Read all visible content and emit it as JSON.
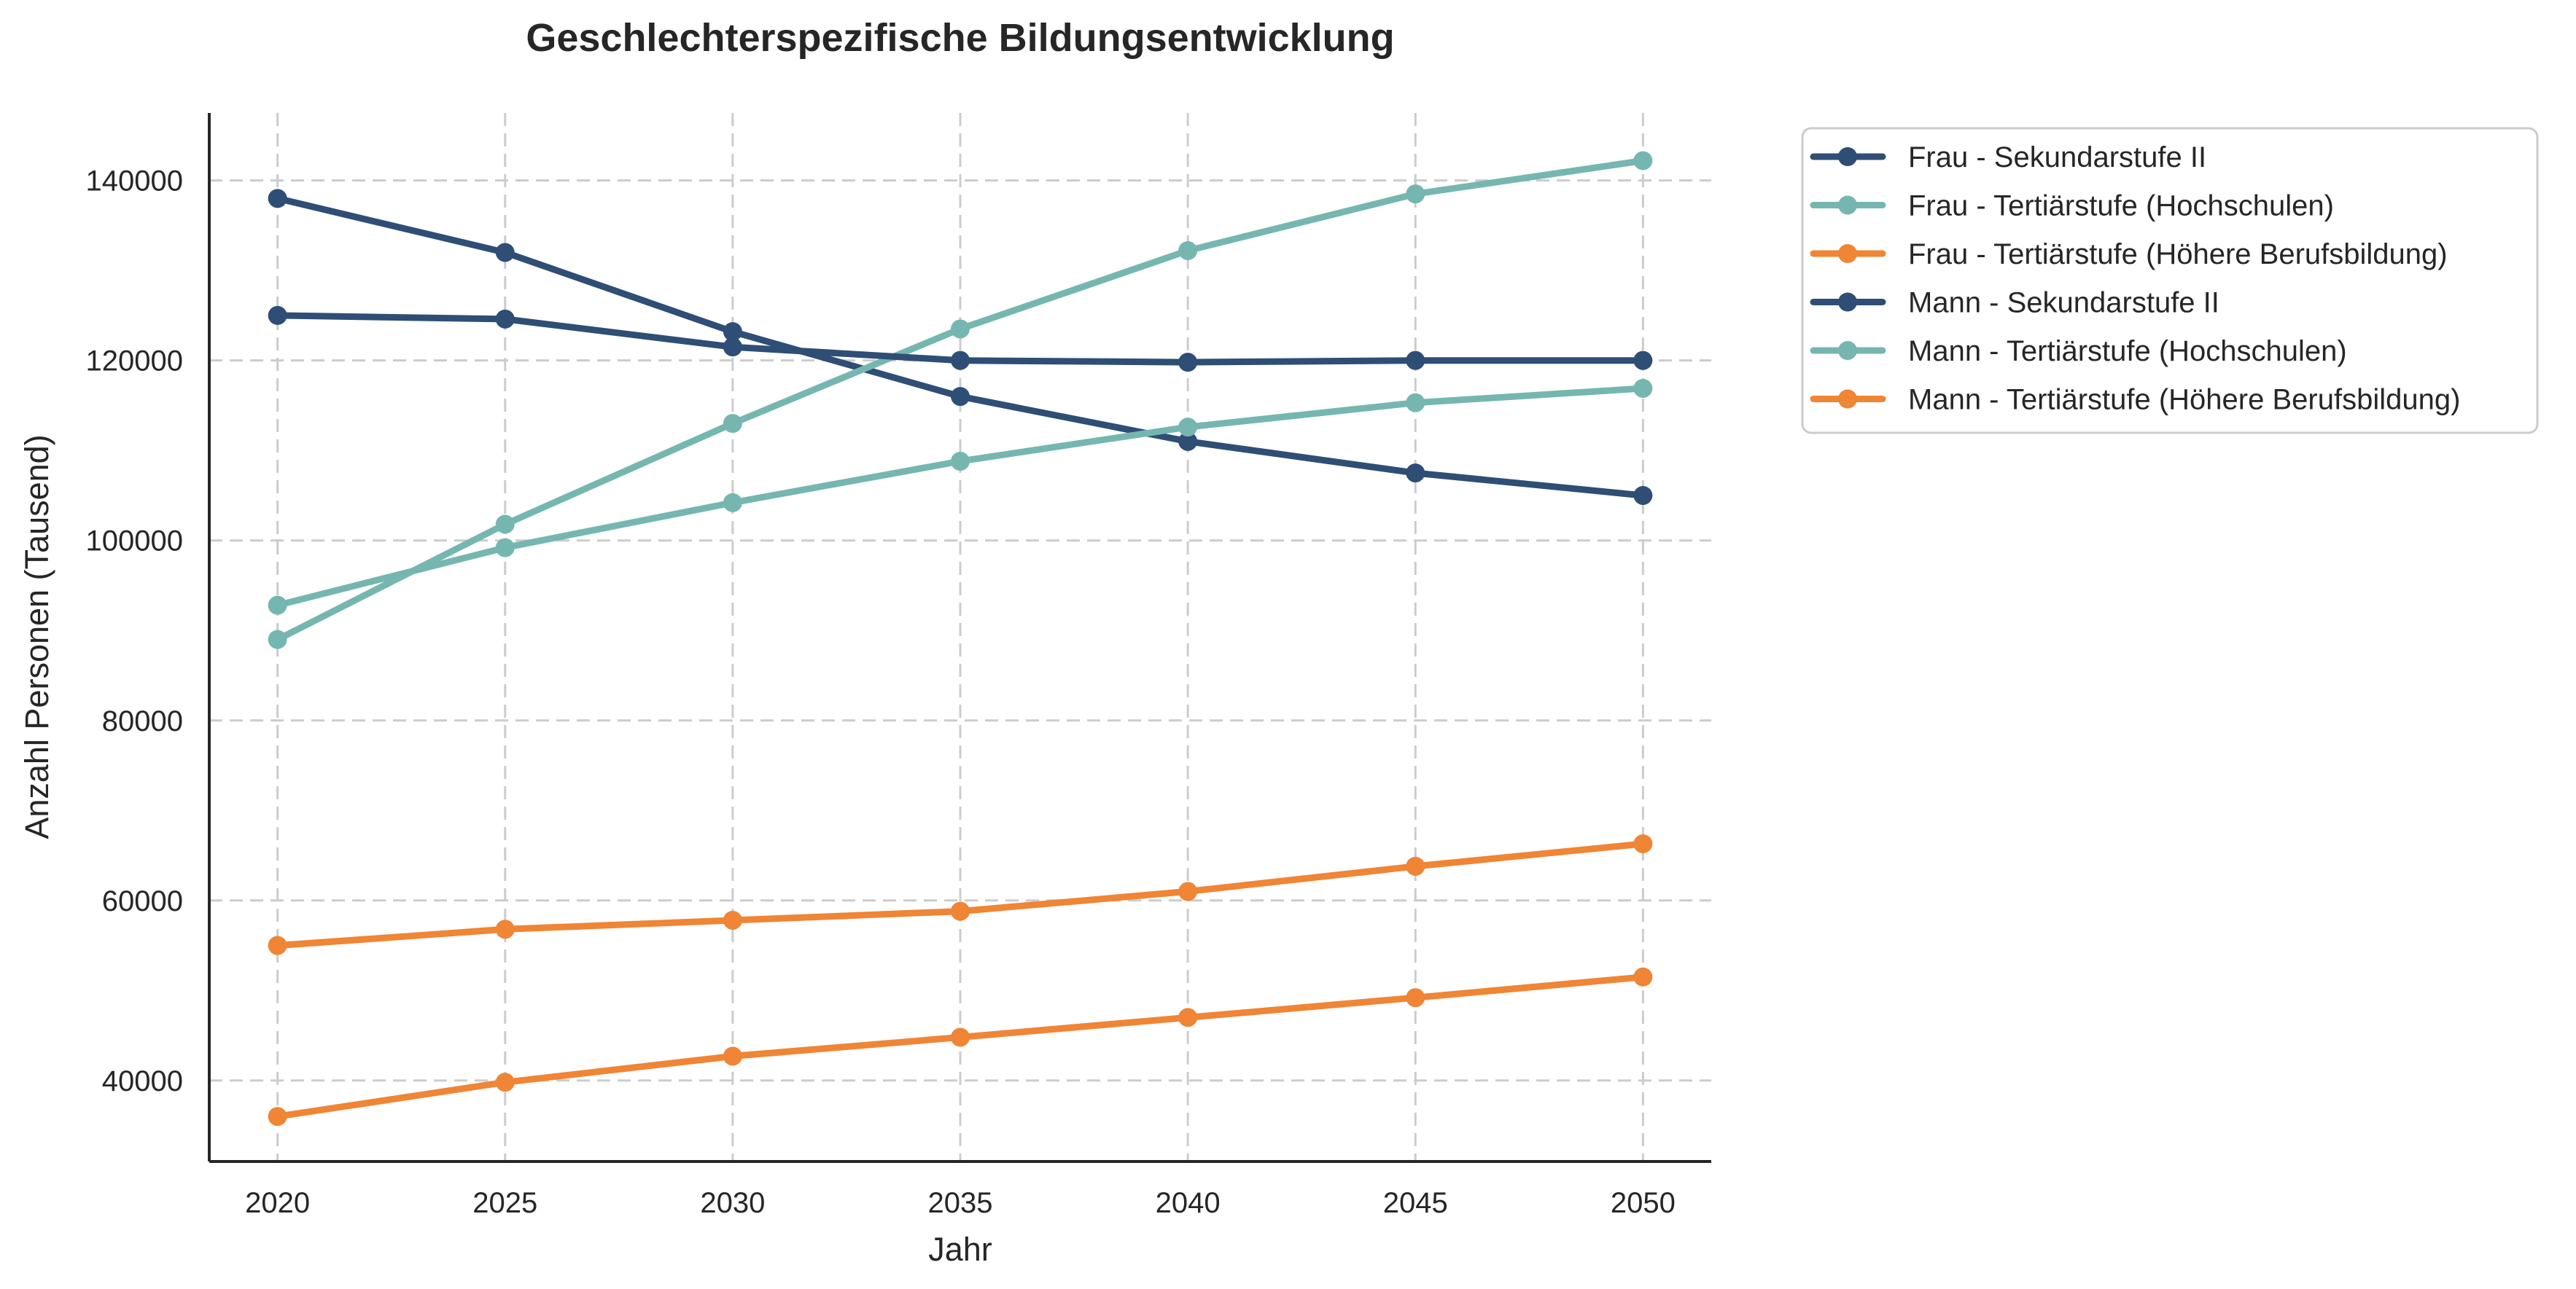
{
  "chart_data": {
    "type": "line",
    "title": "Geschlechterspezifische Bildungsentwicklung",
    "xlabel": "Jahr",
    "ylabel": "Anzahl Personen (Tausend)",
    "x": [
      2020,
      2025,
      2030,
      2035,
      2040,
      2045,
      2050
    ],
    "x_ticks": [
      "2020",
      "2025",
      "2030",
      "2035",
      "2040",
      "2045",
      "2050"
    ],
    "y_ticks": [
      40000,
      60000,
      80000,
      100000,
      120000,
      140000
    ],
    "y_tick_labels": [
      "40000",
      "60000",
      "80000",
      "100000",
      "120000",
      "140000"
    ],
    "xlim": [
      2018.5,
      2051.5
    ],
    "ylim": [
      31000,
      147500
    ],
    "grid": true,
    "legend_position": "outside-top-right",
    "series": [
      {
        "name": "Frau - Sekundarstufe II",
        "color": "#2e4e75",
        "values": [
          138000,
          132000,
          123200,
          116000,
          111000,
          107500,
          105000
        ]
      },
      {
        "name": "Frau - Tertiärstufe (Hochschulen)",
        "color": "#75b7b0",
        "values": [
          89000,
          101800,
          113000,
          123500,
          132200,
          138500,
          142200
        ]
      },
      {
        "name": "Frau - Tertiärstufe (Höhere Berufsbildung)",
        "color": "#ef8535",
        "values": [
          55000,
          56800,
          57800,
          58800,
          61000,
          63800,
          66300
        ]
      },
      {
        "name": "Mann - Sekundarstufe II",
        "color": "#2e4e75",
        "values": [
          125000,
          124600,
          121500,
          120000,
          119800,
          120000,
          120000
        ]
      },
      {
        "name": "Mann - Tertiärstufe (Hochschulen)",
        "color": "#75b7b0",
        "values": [
          92800,
          99200,
          104200,
          108800,
          112600,
          115300,
          116900
        ]
      },
      {
        "name": "Mann - Tertiärstufe (Höhere Berufsbildung)",
        "color": "#ef8535",
        "values": [
          36000,
          39800,
          42700,
          44800,
          47000,
          49200,
          51500
        ]
      }
    ]
  }
}
